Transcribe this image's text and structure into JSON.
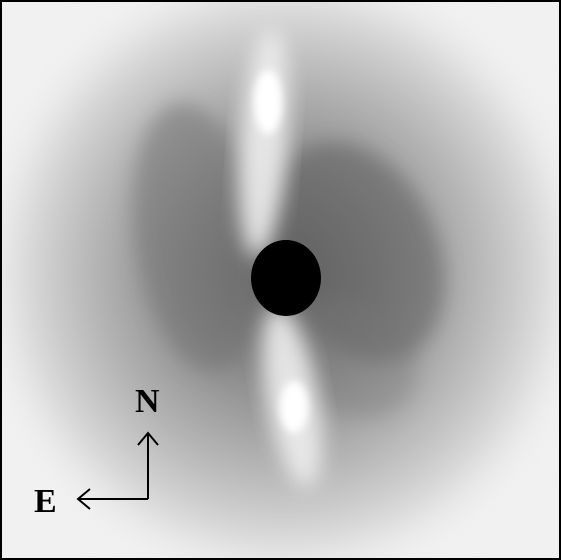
{
  "compass": {
    "north_label": "N",
    "east_label": "E"
  }
}
